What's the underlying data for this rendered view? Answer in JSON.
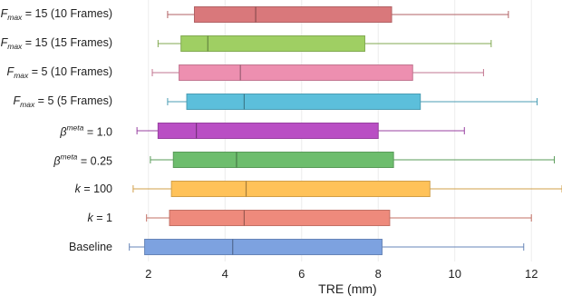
{
  "chart_data": {
    "type": "boxplot",
    "orientation": "horizontal",
    "xlabel": "TRE (mm)",
    "xlim": [
      1.2,
      12.8
    ],
    "xticks": [
      2,
      4,
      6,
      8,
      10,
      12
    ],
    "grid": "vertical",
    "categories": [
      {
        "label_parts": [
          {
            "t": "F",
            "s": "it"
          },
          {
            "t": "max",
            "s": "sub"
          },
          {
            "t": " = 15 (10 Frames)",
            "s": ""
          }
        ]
      },
      {
        "label_parts": [
          {
            "t": "F",
            "s": "it"
          },
          {
            "t": "max",
            "s": "sub"
          },
          {
            "t": " = 15 (15 Frames)",
            "s": ""
          }
        ]
      },
      {
        "label_parts": [
          {
            "t": "F",
            "s": "it"
          },
          {
            "t": "max",
            "s": "sub"
          },
          {
            "t": " = 5 (10 Frames)",
            "s": ""
          }
        ]
      },
      {
        "label_parts": [
          {
            "t": "F",
            "s": "it"
          },
          {
            "t": "max",
            "s": "sub"
          },
          {
            "t": " = 5 (5 Frames)",
            "s": ""
          }
        ]
      },
      {
        "label_parts": [
          {
            "t": "β",
            "s": "it"
          },
          {
            "t": "meta",
            "s": "sup"
          },
          {
            "t": " = 1.0",
            "s": ""
          }
        ]
      },
      {
        "label_parts": [
          {
            "t": "β",
            "s": "it"
          },
          {
            "t": "meta",
            "s": "sup"
          },
          {
            "t": " = 0.25",
            "s": ""
          }
        ]
      },
      {
        "label_parts": [
          {
            "t": "k",
            "s": "it"
          },
          {
            "t": " = 100",
            "s": ""
          }
        ]
      },
      {
        "label_parts": [
          {
            "t": "k",
            "s": "it"
          },
          {
            "t": " = 1",
            "s": ""
          }
        ]
      },
      {
        "label_parts": [
          {
            "t": "Baseline",
            "s": ""
          }
        ]
      }
    ],
    "boxes": [
      {
        "whislo": 2.5,
        "q1": 3.2,
        "med": 4.8,
        "q3": 8.35,
        "whishi": 11.4,
        "color": "#d9787b"
      },
      {
        "whislo": 2.25,
        "q1": 2.85,
        "med": 3.55,
        "q3": 7.65,
        "whishi": 10.95,
        "color": "#9fcf63"
      },
      {
        "whislo": 2.1,
        "q1": 2.8,
        "med": 4.4,
        "q3": 8.9,
        "whishi": 10.75,
        "color": "#ed8fb0"
      },
      {
        "whislo": 2.5,
        "q1": 3.0,
        "med": 4.5,
        "q3": 9.1,
        "whishi": 12.15,
        "color": "#5cbfdb"
      },
      {
        "whislo": 1.7,
        "q1": 2.25,
        "med": 3.25,
        "q3": 8.0,
        "whishi": 10.25,
        "color": "#b94fc4"
      },
      {
        "whislo": 2.05,
        "q1": 2.65,
        "med": 4.3,
        "q3": 8.4,
        "whishi": 12.6,
        "color": "#6dbd6d"
      },
      {
        "whislo": 1.6,
        "q1": 2.6,
        "med": 4.55,
        "q3": 9.35,
        "whishi": 12.8,
        "color": "#ffc259"
      },
      {
        "whislo": 1.95,
        "q1": 2.55,
        "med": 4.5,
        "q3": 8.3,
        "whishi": 12.0,
        "color": "#ee8a7c"
      },
      {
        "whislo": 1.5,
        "q1": 1.9,
        "med": 4.2,
        "q3": 8.1,
        "whishi": 11.8,
        "color": "#7da2e0"
      }
    ]
  }
}
